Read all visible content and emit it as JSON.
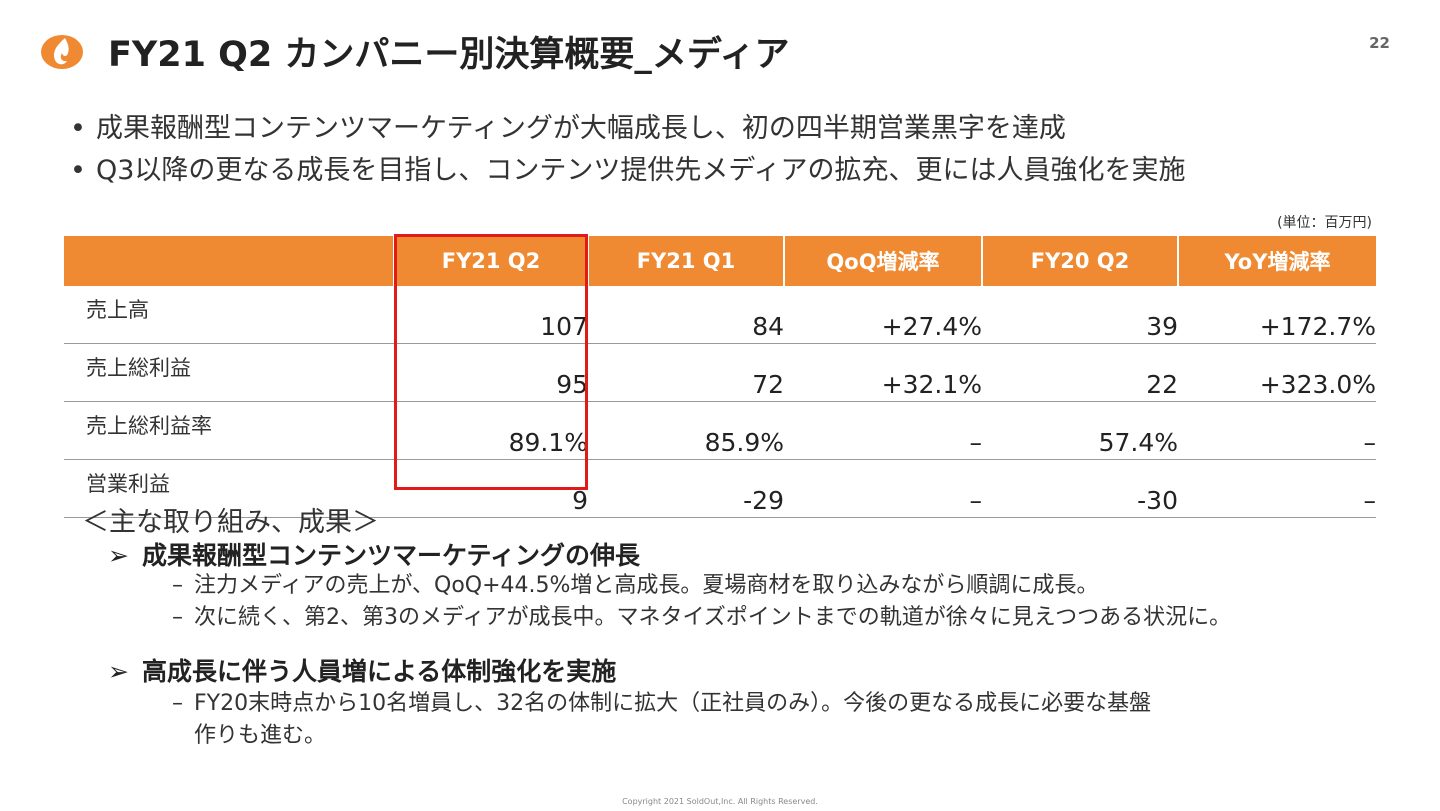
{
  "header": {
    "title": "FY21 Q2 カンパニー別決算概要_メディア",
    "page_number": "22"
  },
  "bullets": [
    "成果報酬型コンテンツマーケティングが大幅成長し、初の四半期営業黒字を達成",
    "Q3以降の更なる成長を目指し、コンテンツ提供先メディアの拡充、更には人員強化を実施"
  ],
  "bullet_marker": "•",
  "table": {
    "unit_note": "(単位：百万円)",
    "headers": [
      "",
      "FY21 Q2",
      "FY21 Q1",
      "QoQ増減率",
      "FY20 Q2",
      "YoY増減率"
    ],
    "rows": [
      {
        "label": "売上高",
        "cells": [
          "107",
          "84",
          "+27.4%",
          "39",
          "+172.7%"
        ]
      },
      {
        "label": "売上総利益",
        "cells": [
          "95",
          "72",
          "+32.1%",
          "22",
          "+323.0%"
        ]
      },
      {
        "label": "売上総利益率",
        "cells": [
          "89.1%",
          "85.9%",
          "–",
          "57.4%",
          "–"
        ]
      },
      {
        "label": "営業利益",
        "cells": [
          "9",
          "-29",
          "–",
          "-30",
          "–"
        ]
      }
    ]
  },
  "highlights": {
    "heading": "＜主な取り組み、成果＞",
    "arrow": "➢",
    "dash": "–",
    "sections": [
      {
        "title": "成果報酬型コンテンツマーケティングの伸長",
        "items": [
          "注力メディアの売上が、QoQ+44.5%増と高成長。夏場商材を取り込みながら順調に成長。",
          "次に続く、第2、第3のメディアが成長中。マネタイズポイントまでの軌道が徐々に見えつつある状況に。"
        ]
      },
      {
        "title": "高成長に伴う人員増による体制強化を実施",
        "items": [
          "FY20末時点から10名増員し、32名の体制に拡大（正社員のみ）。今後の更なる成長に必要な基盤"
        ],
        "item_continuation": "作りも進む。"
      }
    ]
  },
  "footer": {
    "copyright": "Copyright 2021 SoldOut,Inc. All Rights Reserved."
  },
  "colors": {
    "accent_orange": "#f08a32",
    "highlight_red": "#e11a1a"
  },
  "icons": {
    "logo": "flame-logo-icon"
  }
}
